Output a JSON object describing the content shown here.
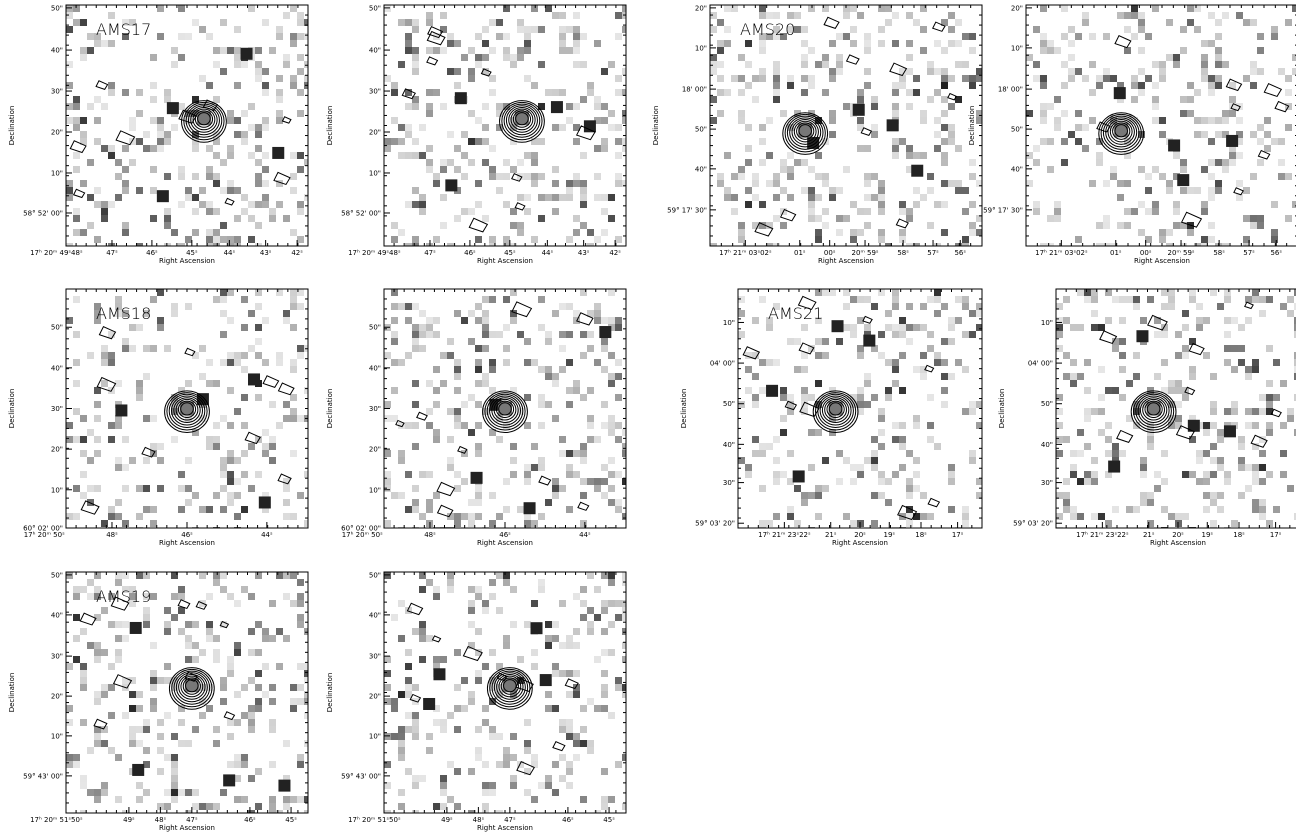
{
  "x_axis_label": "Right Ascension",
  "y_axis_label": "Declination",
  "groups": [
    {
      "name": "AMS17",
      "x_ticks": [
        "17ʰ 20ᵐ 49ˢ48ˢ",
        "47ˢ",
        "46ˢ",
        "45ˢ",
        "44ˢ",
        "43ˢ",
        "42ˢ"
      ],
      "y_ticks": [
        "50\"",
        "40\"",
        "30\"",
        "20\"",
        "10\"",
        "58° 52' 00\""
      ]
    },
    {
      "name": "AMS18",
      "x_ticks": [
        "17ʰ 20ᵐ 50ˢ",
        "48ˢ",
        "46ˢ",
        "44ˢ"
      ],
      "y_ticks": [
        "50\"",
        "40\"",
        "30\"",
        "20\"",
        "10\"",
        "60° 02' 00\""
      ]
    },
    {
      "name": "AMS19",
      "x_ticks": [
        "17ʰ 20ᵐ 51ˢ50ˢ",
        "49ˢ",
        "48ˢ",
        "47ˢ",
        "46ˢ",
        "45ˢ"
      ],
      "y_ticks": [
        "50\"",
        "40\"",
        "30\"",
        "20\"",
        "10\"",
        "59° 43' 00\""
      ]
    },
    {
      "name": "AMS20",
      "x_ticks": [
        "17ʰ 21ᵐ 03ˢ02ˢ",
        "01ˢ",
        "00ˢ",
        "20ᵐ 59ˢ",
        "58ˢ",
        "57ˢ",
        "56ˢ"
      ],
      "y_ticks": [
        "20\"",
        "10\"",
        "18' 00\"",
        "50\"",
        "40\"",
        "59° 17' 30\""
      ]
    },
    {
      "name": "AMS21",
      "x_ticks": [
        "17ʰ 21ᵐ 23ˢ22ˢ",
        "21ˢ",
        "20ˢ",
        "19ˢ",
        "18ˢ",
        "17ˢ"
      ],
      "y_ticks": [
        "10\"",
        "04' 00\"",
        "50\"",
        "40\"",
        "30\"",
        "59° 03' 20\""
      ]
    }
  ]
}
